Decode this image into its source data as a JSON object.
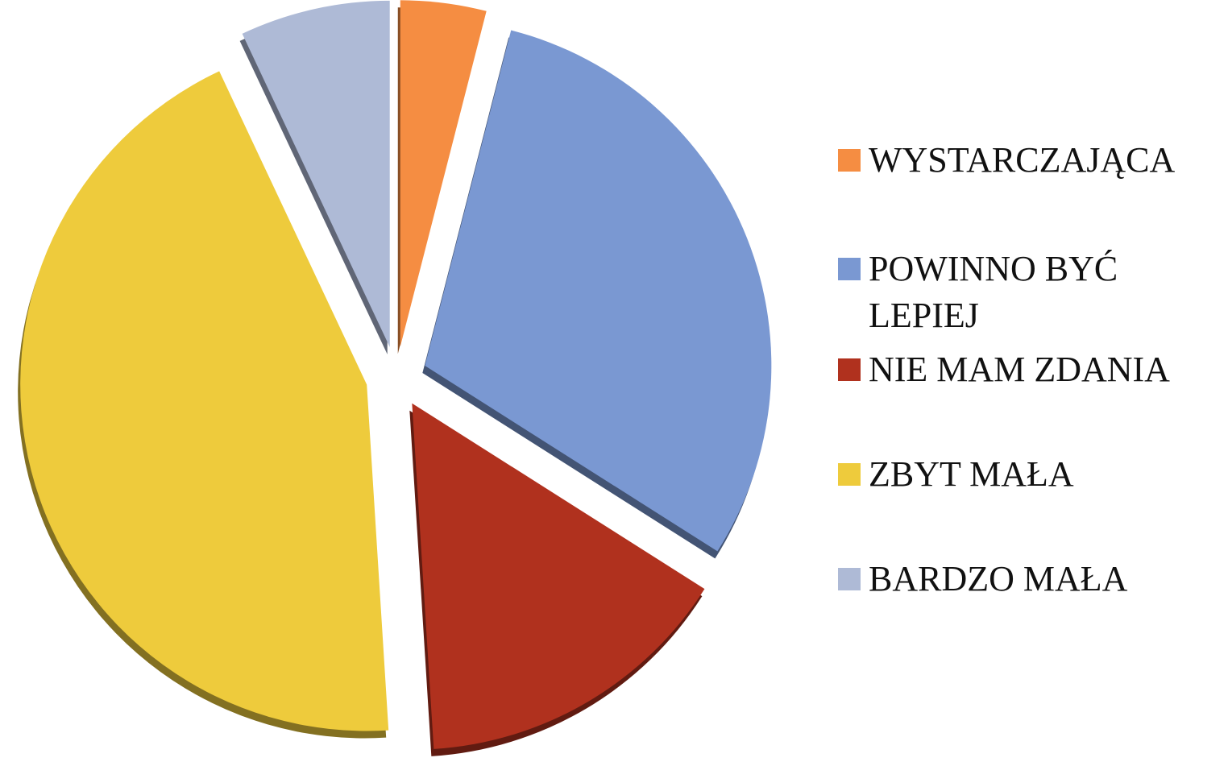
{
  "chart_data": {
    "type": "pie",
    "categories": [
      "WYSTARCZAJĄCA",
      "POWINNO BYĆ LEPIEJ",
      "NIE MAM ZDANIA",
      "ZBYT MAŁA",
      "BARDZO MAŁA"
    ],
    "values": [
      4,
      30,
      15,
      44,
      7
    ],
    "colors": [
      "#f58d42",
      "#7a98d2",
      "#b0311e",
      "#eecb3c",
      "#aebad6"
    ],
    "legend": "right"
  }
}
